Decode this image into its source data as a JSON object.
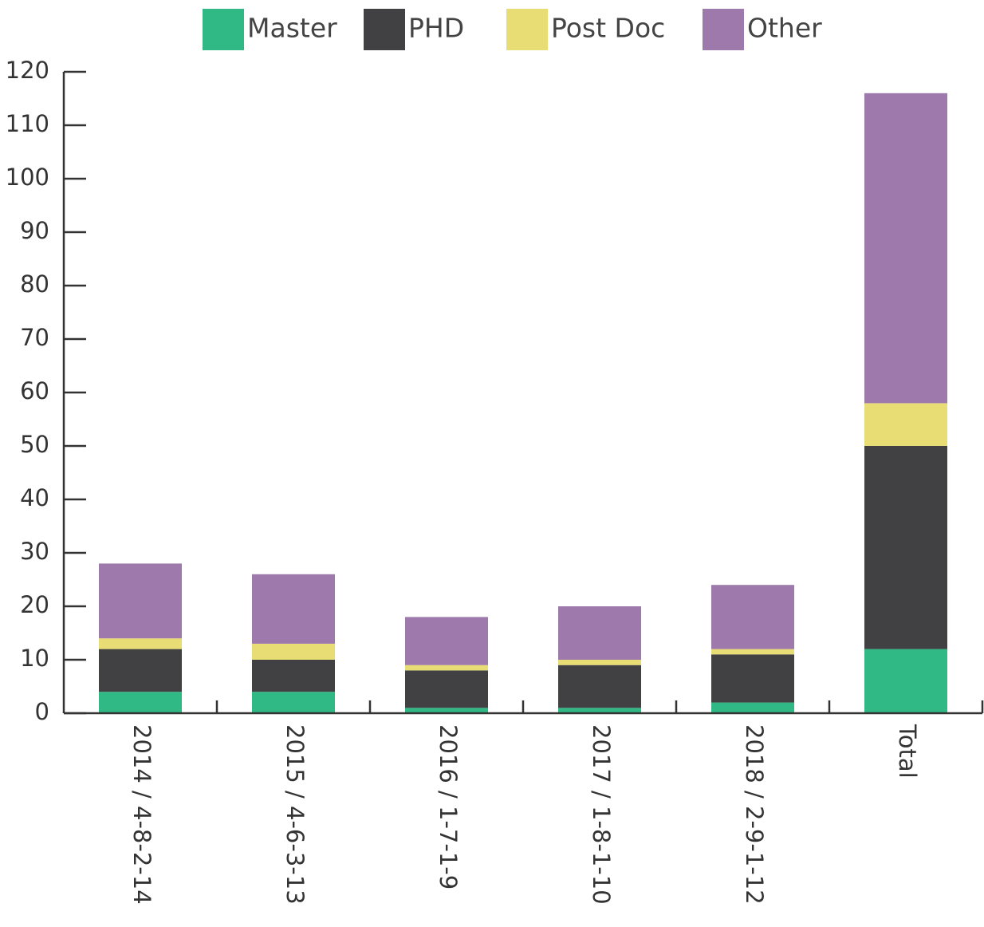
{
  "chart_data": {
    "type": "stacked_bar",
    "categories": [
      "2014 / 4-8-2-14",
      "2015 / 4-6-3-13",
      "2016 / 1-7-1-9",
      "2017 / 1-8-1-10",
      "2018 / 2-9-1-12",
      "Total"
    ],
    "series": [
      {
        "name": "Master",
        "color": "#31b985",
        "values": [
          4,
          4,
          1,
          1,
          2,
          12
        ]
      },
      {
        "name": "PHD",
        "color": "#414042",
        "values": [
          8,
          6,
          7,
          8,
          9,
          38
        ]
      },
      {
        "name": "Post Doc",
        "color": "#e8dd75",
        "values": [
          2,
          3,
          1,
          1,
          1,
          8
        ]
      },
      {
        "name": "Other",
        "color": "#9e79ab",
        "values": [
          14,
          13,
          9,
          10,
          12,
          58
        ]
      }
    ],
    "ylim": [
      0,
      120
    ],
    "yticks": [
      0,
      10,
      20,
      30,
      40,
      50,
      60,
      70,
      80,
      90,
      100,
      110,
      120
    ],
    "legend": "top"
  }
}
